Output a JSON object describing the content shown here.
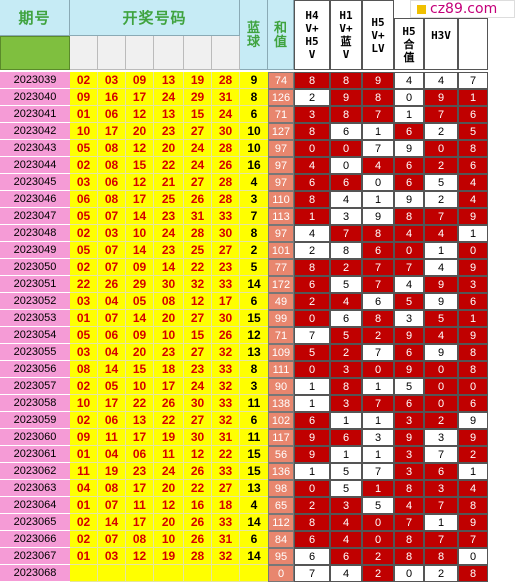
{
  "headers": {
    "issue": "期号",
    "numbers": "开奖号码",
    "blue": [
      "蓝",
      "球"
    ],
    "sum": [
      "和",
      "值"
    ],
    "h4v": [
      "H4",
      "V+",
      "H5",
      "V"
    ],
    "h1v": [
      "H1",
      "V+",
      "蓝",
      "V"
    ],
    "h5v": [
      "H5",
      "V+",
      "LV"
    ],
    "h5sum": [
      "H5",
      "合",
      "值"
    ],
    "h3v": "H3V"
  },
  "logo": "cz89.com",
  "colors": {
    "issue_bg": "#f59bd6",
    "number_bg": "#ffff00",
    "red_num": "#d40000",
    "dark_red": "#c00000"
  },
  "rows": [
    {
      "issue": "2023039",
      "red": [
        "02",
        "03",
        "09",
        "13",
        "19",
        "28"
      ],
      "blue": "9",
      "sum": "74",
      "v": [
        "8",
        "8",
        "9",
        "4",
        "4",
        "7"
      ],
      "m": [
        1,
        1,
        1,
        0,
        0,
        0
      ]
    },
    {
      "issue": "2023040",
      "red": [
        "09",
        "16",
        "17",
        "24",
        "29",
        "31"
      ],
      "blue": "8",
      "sum": "126",
      "v": [
        "2",
        "9",
        "8",
        "0",
        "9",
        "1"
      ],
      "m": [
        0,
        1,
        1,
        0,
        1,
        1
      ]
    },
    {
      "issue": "2023041",
      "red": [
        "01",
        "06",
        "12",
        "13",
        "15",
        "24"
      ],
      "blue": "6",
      "sum": "71",
      "v": [
        "3",
        "8",
        "7",
        "1",
        "7",
        "6"
      ],
      "m": [
        1,
        1,
        1,
        0,
        1,
        1
      ]
    },
    {
      "issue": "2023042",
      "red": [
        "10",
        "17",
        "20",
        "23",
        "27",
        "30"
      ],
      "blue": "10",
      "sum": "127",
      "v": [
        "8",
        "6",
        "1",
        "6",
        "2",
        "5"
      ],
      "m": [
        1,
        0,
        0,
        1,
        0,
        1
      ]
    },
    {
      "issue": "2023043",
      "red": [
        "05",
        "08",
        "12",
        "20",
        "24",
        "28"
      ],
      "blue": "10",
      "sum": "97",
      "v": [
        "0",
        "0",
        "7",
        "9",
        "0",
        "8"
      ],
      "m": [
        1,
        1,
        0,
        0,
        1,
        1
      ]
    },
    {
      "issue": "2023044",
      "red": [
        "02",
        "08",
        "15",
        "22",
        "24",
        "26"
      ],
      "blue": "16",
      "sum": "97",
      "v": [
        "4",
        "0",
        "4",
        "6",
        "2",
        "6"
      ],
      "m": [
        1,
        0,
        1,
        1,
        1,
        1
      ]
    },
    {
      "issue": "2023045",
      "red": [
        "03",
        "06",
        "12",
        "21",
        "27",
        "28"
      ],
      "blue": "4",
      "sum": "97",
      "v": [
        "6",
        "6",
        "0",
        "6",
        "5",
        "4"
      ],
      "m": [
        1,
        1,
        0,
        1,
        0,
        1
      ]
    },
    {
      "issue": "2023046",
      "red": [
        "06",
        "08",
        "17",
        "25",
        "26",
        "28"
      ],
      "blue": "3",
      "sum": "110",
      "v": [
        "8",
        "4",
        "1",
        "9",
        "2",
        "4"
      ],
      "m": [
        1,
        0,
        0,
        0,
        0,
        1
      ]
    },
    {
      "issue": "2023047",
      "red": [
        "05",
        "07",
        "14",
        "23",
        "31",
        "33"
      ],
      "blue": "7",
      "sum": "113",
      "v": [
        "1",
        "3",
        "9",
        "8",
        "7",
        "9"
      ],
      "m": [
        1,
        0,
        0,
        1,
        1,
        1
      ]
    },
    {
      "issue": "2023048",
      "red": [
        "02",
        "03",
        "10",
        "24",
        "28",
        "30"
      ],
      "blue": "8",
      "sum": "97",
      "v": [
        "4",
        "7",
        "8",
        "4",
        "4",
        "1"
      ],
      "m": [
        0,
        1,
        1,
        1,
        1,
        0
      ]
    },
    {
      "issue": "2023049",
      "red": [
        "05",
        "07",
        "14",
        "23",
        "25",
        "27"
      ],
      "blue": "2",
      "sum": "101",
      "v": [
        "2",
        "8",
        "6",
        "0",
        "1",
        "0"
      ],
      "m": [
        0,
        0,
        1,
        1,
        0,
        1
      ]
    },
    {
      "issue": "2023050",
      "red": [
        "02",
        "07",
        "09",
        "14",
        "22",
        "23"
      ],
      "blue": "5",
      "sum": "77",
      "v": [
        "8",
        "2",
        "7",
        "7",
        "4",
        "9"
      ],
      "m": [
        1,
        1,
        1,
        1,
        0,
        1
      ]
    },
    {
      "issue": "2023051",
      "red": [
        "22",
        "26",
        "29",
        "30",
        "32",
        "33"
      ],
      "blue": "14",
      "sum": "172",
      "v": [
        "6",
        "5",
        "7",
        "4",
        "9",
        "3"
      ],
      "m": [
        1,
        0,
        1,
        0,
        1,
        1
      ]
    },
    {
      "issue": "2023052",
      "red": [
        "03",
        "04",
        "05",
        "08",
        "12",
        "17"
      ],
      "blue": "6",
      "sum": "49",
      "v": [
        "2",
        "4",
        "6",
        "5",
        "9",
        "6"
      ],
      "m": [
        1,
        1,
        0,
        1,
        0,
        1
      ]
    },
    {
      "issue": "2023053",
      "red": [
        "01",
        "07",
        "14",
        "20",
        "27",
        "30"
      ],
      "blue": "15",
      "sum": "99",
      "v": [
        "0",
        "6",
        "8",
        "3",
        "5",
        "1"
      ],
      "m": [
        1,
        0,
        1,
        0,
        1,
        1
      ]
    },
    {
      "issue": "2023054",
      "red": [
        "05",
        "06",
        "09",
        "10",
        "15",
        "26"
      ],
      "blue": "12",
      "sum": "71",
      "v": [
        "7",
        "5",
        "2",
        "9",
        "4",
        "9"
      ],
      "m": [
        0,
        1,
        1,
        1,
        1,
        1
      ]
    },
    {
      "issue": "2023055",
      "red": [
        "03",
        "04",
        "20",
        "23",
        "27",
        "32"
      ],
      "blue": "13",
      "sum": "109",
      "v": [
        "5",
        "2",
        "7",
        "6",
        "9",
        "8"
      ],
      "m": [
        1,
        1,
        0,
        1,
        0,
        1
      ]
    },
    {
      "issue": "2023056",
      "red": [
        "08",
        "14",
        "15",
        "18",
        "23",
        "33"
      ],
      "blue": "8",
      "sum": "111",
      "v": [
        "0",
        "3",
        "0",
        "9",
        "0",
        "8"
      ],
      "m": [
        1,
        1,
        1,
        1,
        1,
        1
      ]
    },
    {
      "issue": "2023057",
      "red": [
        "02",
        "05",
        "10",
        "17",
        "24",
        "32"
      ],
      "blue": "3",
      "sum": "90",
      "v": [
        "1",
        "8",
        "1",
        "5",
        "0",
        "0"
      ],
      "m": [
        0,
        1,
        0,
        0,
        1,
        1
      ]
    },
    {
      "issue": "2023058",
      "red": [
        "10",
        "17",
        "22",
        "26",
        "30",
        "33"
      ],
      "blue": "11",
      "sum": "138",
      "v": [
        "1",
        "3",
        "7",
        "6",
        "0",
        "6"
      ],
      "m": [
        0,
        1,
        1,
        1,
        1,
        1
      ]
    },
    {
      "issue": "2023059",
      "red": [
        "02",
        "06",
        "13",
        "22",
        "27",
        "32"
      ],
      "blue": "6",
      "sum": "102",
      "v": [
        "6",
        "1",
        "1",
        "3",
        "2",
        "9"
      ],
      "m": [
        1,
        0,
        0,
        1,
        1,
        0
      ]
    },
    {
      "issue": "2023060",
      "red": [
        "09",
        "11",
        "17",
        "19",
        "30",
        "31"
      ],
      "blue": "11",
      "sum": "117",
      "v": [
        "9",
        "6",
        "3",
        "9",
        "3",
        "9"
      ],
      "m": [
        1,
        1,
        0,
        1,
        0,
        1
      ]
    },
    {
      "issue": "2023061",
      "red": [
        "01",
        "04",
        "06",
        "11",
        "12",
        "22"
      ],
      "blue": "15",
      "sum": "56",
      "v": [
        "9",
        "1",
        "1",
        "3",
        "7",
        "2"
      ],
      "m": [
        1,
        0,
        0,
        1,
        0,
        1
      ]
    },
    {
      "issue": "2023062",
      "red": [
        "11",
        "19",
        "23",
        "24",
        "26",
        "33"
      ],
      "blue": "15",
      "sum": "136",
      "v": [
        "1",
        "5",
        "7",
        "3",
        "6",
        "1"
      ],
      "m": [
        0,
        0,
        0,
        1,
        1,
        0
      ]
    },
    {
      "issue": "2023063",
      "red": [
        "04",
        "08",
        "17",
        "20",
        "22",
        "27"
      ],
      "blue": "13",
      "sum": "98",
      "v": [
        "0",
        "5",
        "1",
        "8",
        "3",
        "4"
      ],
      "m": [
        1,
        0,
        1,
        1,
        1,
        1
      ]
    },
    {
      "issue": "2023064",
      "red": [
        "01",
        "07",
        "11",
        "12",
        "16",
        "18"
      ],
      "blue": "4",
      "sum": "65",
      "v": [
        "2",
        "3",
        "5",
        "4",
        "7",
        "8"
      ],
      "m": [
        1,
        1,
        0,
        1,
        1,
        1
      ]
    },
    {
      "issue": "2023065",
      "red": [
        "02",
        "14",
        "17",
        "20",
        "26",
        "33"
      ],
      "blue": "14",
      "sum": "112",
      "v": [
        "8",
        "4",
        "0",
        "7",
        "1",
        "9"
      ],
      "m": [
        1,
        1,
        1,
        1,
        0,
        1
      ]
    },
    {
      "issue": "2023066",
      "red": [
        "02",
        "07",
        "08",
        "10",
        "26",
        "31"
      ],
      "blue": "6",
      "sum": "84",
      "v": [
        "6",
        "4",
        "0",
        "8",
        "7",
        "7"
      ],
      "m": [
        1,
        1,
        1,
        1,
        1,
        1
      ]
    },
    {
      "issue": "2023067",
      "red": [
        "01",
        "03",
        "12",
        "19",
        "28",
        "32"
      ],
      "blue": "14",
      "sum": "95",
      "v": [
        "6",
        "6",
        "2",
        "8",
        "8",
        "0"
      ],
      "m": [
        0,
        1,
        1,
        1,
        1,
        0
      ]
    },
    {
      "issue": "2023068",
      "red": [
        "",
        "",
        "",
        "",
        "",
        ""
      ],
      "blue": "",
      "sum": "0",
      "v": [
        "7",
        "4",
        "2",
        "0",
        "2",
        "8"
      ],
      "m": [
        0,
        0,
        1,
        0,
        0,
        1
      ]
    }
  ]
}
